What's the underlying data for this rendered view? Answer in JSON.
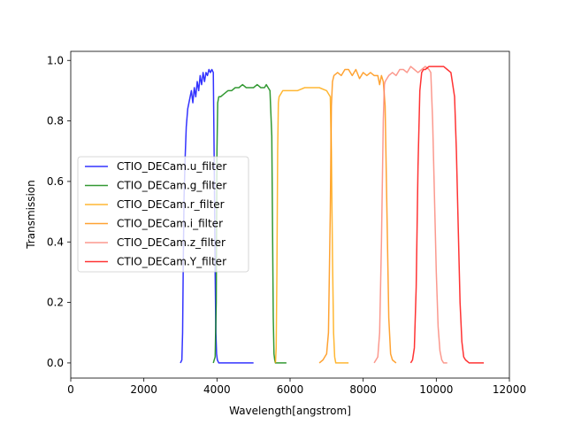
{
  "chart_data": {
    "type": "line",
    "title": "",
    "xlabel": "Wavelength[angstrom]",
    "ylabel": "Transmission",
    "xlim": [
      0,
      12000
    ],
    "ylim": [
      -0.05,
      1.03
    ],
    "xticks": [
      0,
      2000,
      4000,
      6000,
      8000,
      10000,
      12000
    ],
    "yticks": [
      0.0,
      0.2,
      0.4,
      0.6,
      0.8,
      1.0
    ],
    "xtick_labels": [
      "0",
      "2000",
      "4000",
      "6000",
      "8000",
      "10000",
      "12000"
    ],
    "ytick_labels": [
      "0.0",
      "0.2",
      "0.4",
      "0.6",
      "0.8",
      "1.0"
    ],
    "grid": false,
    "legend_placement": "center-left",
    "series": [
      {
        "name": "CTIO_DECam.u_filter",
        "color": "#0000ff",
        "x": [
          3000,
          3040,
          3060,
          3080,
          3100,
          3130,
          3160,
          3200,
          3250,
          3300,
          3340,
          3380,
          3420,
          3460,
          3500,
          3540,
          3580,
          3620,
          3660,
          3700,
          3740,
          3780,
          3820,
          3860,
          3900,
          3930,
          3950,
          3970,
          3990,
          4010,
          4050,
          4100,
          4200,
          4500,
          5000
        ],
        "y": [
          0.0,
          0.01,
          0.1,
          0.35,
          0.55,
          0.68,
          0.78,
          0.84,
          0.87,
          0.9,
          0.86,
          0.91,
          0.88,
          0.93,
          0.9,
          0.95,
          0.92,
          0.96,
          0.93,
          0.96,
          0.95,
          0.97,
          0.96,
          0.97,
          0.96,
          0.6,
          0.3,
          0.1,
          0.03,
          0.01,
          0.0,
          0.0,
          0.0,
          0.0,
          0.0
        ]
      },
      {
        "name": "CTIO_DECam.g_filter",
        "color": "#008000",
        "x": [
          3900,
          3950,
          3980,
          4000,
          4020,
          4050,
          4100,
          4200,
          4300,
          4400,
          4500,
          4600,
          4700,
          4800,
          4900,
          5000,
          5100,
          5200,
          5300,
          5350,
          5400,
          5450,
          5500,
          5520,
          5540,
          5560,
          5580,
          5600,
          5700,
          5900
        ],
        "y": [
          0.0,
          0.02,
          0.2,
          0.7,
          0.86,
          0.88,
          0.88,
          0.89,
          0.9,
          0.9,
          0.91,
          0.91,
          0.92,
          0.91,
          0.91,
          0.91,
          0.92,
          0.91,
          0.91,
          0.92,
          0.91,
          0.9,
          0.75,
          0.45,
          0.15,
          0.03,
          0.01,
          0.0,
          0.0,
          0.0
        ]
      },
      {
        "name": "CTIO_DECam.r_filter",
        "color": "#ffa500",
        "x": [
          5600,
          5620,
          5640,
          5660,
          5680,
          5700,
          5750,
          5800,
          6000,
          6200,
          6400,
          6600,
          6800,
          7000,
          7050,
          7100,
          7130,
          7160,
          7190,
          7220,
          7250,
          7300,
          7400,
          7600
        ],
        "y": [
          0.0,
          0.05,
          0.3,
          0.7,
          0.86,
          0.88,
          0.89,
          0.9,
          0.9,
          0.9,
          0.91,
          0.91,
          0.91,
          0.9,
          0.89,
          0.88,
          0.7,
          0.35,
          0.1,
          0.02,
          0.0,
          0.0,
          0.0,
          0.0
        ]
      },
      {
        "name": "CTIO_DECam.i_filter",
        "color": "#ff8c00",
        "x": [
          6800,
          6900,
          7000,
          7050,
          7100,
          7130,
          7160,
          7200,
          7300,
          7400,
          7500,
          7600,
          7700,
          7800,
          7900,
          8000,
          8100,
          8200,
          8300,
          8400,
          8450,
          8500,
          8550,
          8600,
          8650,
          8700,
          8750,
          8800,
          8900
        ],
        "y": [
          0.0,
          0.01,
          0.03,
          0.1,
          0.5,
          0.85,
          0.93,
          0.95,
          0.96,
          0.95,
          0.97,
          0.97,
          0.95,
          0.97,
          0.94,
          0.96,
          0.95,
          0.96,
          0.95,
          0.95,
          0.92,
          0.95,
          0.93,
          0.85,
          0.5,
          0.15,
          0.03,
          0.01,
          0.0
        ]
      },
      {
        "name": "CTIO_DECam.z_filter",
        "color": "#fa8072",
        "x": [
          8300,
          8400,
          8450,
          8500,
          8550,
          8580,
          8600,
          8650,
          8700,
          8800,
          8900,
          9000,
          9100,
          9200,
          9300,
          9400,
          9500,
          9600,
          9700,
          9800,
          9850,
          9900,
          9950,
          10000,
          10050,
          10100,
          10150,
          10200,
          10300
        ],
        "y": [
          0.0,
          0.02,
          0.1,
          0.4,
          0.8,
          0.92,
          0.93,
          0.94,
          0.95,
          0.96,
          0.95,
          0.97,
          0.97,
          0.96,
          0.98,
          0.97,
          0.96,
          0.97,
          0.98,
          0.97,
          0.96,
          0.8,
          0.55,
          0.3,
          0.12,
          0.04,
          0.01,
          0.0,
          0.0
        ]
      },
      {
        "name": "CTIO_DECam.Y_filter",
        "color": "#ff0000",
        "x": [
          9300,
          9350,
          9400,
          9450,
          9500,
          9550,
          9600,
          9650,
          9700,
          9800,
          9900,
          10000,
          10100,
          10200,
          10300,
          10400,
          10500,
          10550,
          10600,
          10650,
          10700,
          10750,
          10800,
          10900,
          11000,
          11300
        ],
        "y": [
          0.0,
          0.01,
          0.05,
          0.25,
          0.65,
          0.9,
          0.96,
          0.97,
          0.97,
          0.98,
          0.98,
          0.98,
          0.98,
          0.98,
          0.97,
          0.96,
          0.88,
          0.7,
          0.45,
          0.2,
          0.07,
          0.02,
          0.01,
          0.0,
          0.0,
          0.0
        ]
      }
    ]
  }
}
